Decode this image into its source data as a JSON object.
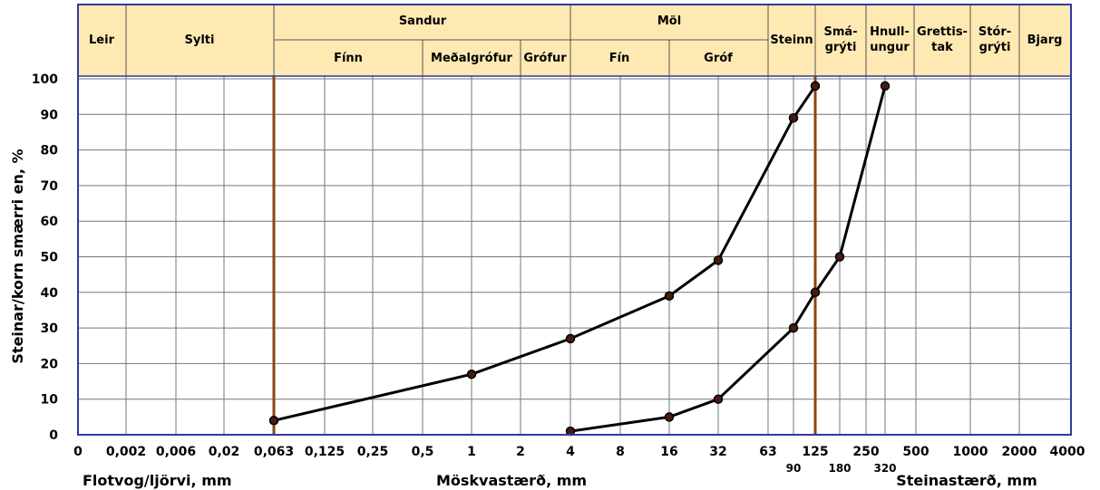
{
  "chart_data": {
    "type": "line",
    "ylabel": "Steinar/korn smærri en, %",
    "xlabels": {
      "left": "Flotvog/ljörvi, mm",
      "middle": "Möskvastærð, mm",
      "right": "Steinastærð, mm"
    },
    "x_ticks": [
      "0",
      "0,002",
      "0,006",
      "0,02",
      "0,063",
      "0,125",
      "0,25",
      "0,5",
      "1",
      "2",
      "4",
      "8",
      "16",
      "32",
      "63",
      "125",
      "250",
      "500",
      "1000",
      "2000",
      "4000"
    ],
    "x_sub_ticks": [
      "90",
      "180",
      "320"
    ],
    "y_ticks": [
      "0",
      "10",
      "20",
      "30",
      "40",
      "50",
      "60",
      "70",
      "80",
      "90",
      "100"
    ],
    "ylim": [
      0,
      100
    ],
    "grid": true,
    "header": {
      "top": [
        "Leir",
        "Sylti",
        "Sandur",
        "Möl",
        "Steinn",
        "Smá-",
        "grýti",
        "Hnull-",
        "ungur",
        "Grettis-",
        "tak",
        "Stór-",
        "grýti",
        "Bjarg"
      ],
      "sub": [
        "Fínn",
        "Meðalgrófur",
        "Grófur",
        "Fín",
        "Gróf"
      ]
    },
    "vertical_markers": [
      0.063,
      125
    ],
    "series": [
      {
        "x": [
          0.063,
          1,
          4,
          16,
          32,
          90,
          125
        ],
        "y": [
          4,
          17,
          27,
          39,
          49,
          89,
          98
        ]
      },
      {
        "x": [
          4,
          16,
          32,
          90,
          125,
          180,
          320
        ],
        "y": [
          1,
          5,
          10,
          30,
          40,
          50,
          98
        ]
      }
    ],
    "colors": {
      "header_fill": "#ffe9b3",
      "marker_line": "#8b4513",
      "series_line": "#000000",
      "point_fill": "#4a1a10",
      "frame": "#2f3aa0"
    }
  }
}
